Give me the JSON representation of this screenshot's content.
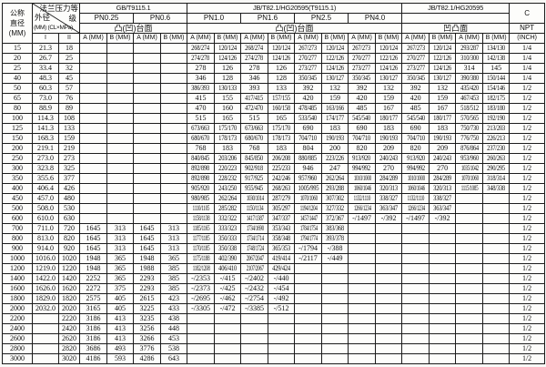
{
  "header": {
    "dn_line1": "公称",
    "dn_line2": "直径",
    "dn_line3": "(MM)",
    "diag": {
      "flange_class_1": "法兰压力等",
      "flange_class_2": "级",
      "od": "外径",
      "od_unit": "(MM) (CL×MPa)"
    },
    "od_sub_1": "I",
    "od_sub_2": "II",
    "groups": [
      {
        "title": "GB/T9115.1",
        "face": "凸(凹)台面",
        "pns": [
          "PN0.25",
          "PN0.6"
        ]
      },
      {
        "title": "JB/T82.1/HG20595(T9115.1)",
        "face": "凸(凹)台面",
        "pns": [
          "PN1.0",
          "PN1.6",
          "PN2.5",
          "PN4.0"
        ]
      },
      {
        "title": "JB/T82.1/HG20595",
        "face": "凹凸面",
        "pns": []
      }
    ],
    "a_label": "A (MM)",
    "b_label": "B (MM)",
    "c": {
      "title": "C",
      "npt": "NPT",
      "unit": "(INCH)"
    }
  },
  "rows": [
    [
      "15",
      "21.3",
      "18",
      "",
      "",
      "",
      "",
      "268/274",
      "120/124",
      "268/274",
      "120/124",
      "267/273",
      "120/124",
      "267/273",
      "120/124",
      "267/273",
      "120/124",
      "293/287",
      "134/130",
      "1/4"
    ],
    [
      "20",
      "26.7",
      "25",
      "",
      "",
      "",
      "",
      "274/278",
      "124/126",
      "274/278",
      "124/126",
      "270/277",
      "122/126",
      "270/277",
      "122/126",
      "270/277",
      "122/126",
      "310/300",
      "142/138",
      "1/4"
    ],
    [
      "25",
      "33.4",
      "32",
      "",
      "",
      "",
      "",
      "278",
      "126",
      "278",
      "126",
      "273/277",
      "124/126",
      "273/277",
      "124/126",
      "273/277",
      "124/126",
      "314",
      "145",
      "1/4"
    ],
    [
      "40",
      "48.3",
      "45",
      "",
      "",
      "",
      "",
      "346",
      "128",
      "346",
      "128",
      "350/345",
      "130/127",
      "350/345",
      "130/127",
      "350/345",
      "130/127",
      "390/380",
      "150/144",
      "1/4"
    ],
    [
      "50",
      "60.3",
      "57",
      "",
      "",
      "",
      "",
      "386/393",
      "130/133",
      "393",
      "133",
      "392",
      "132",
      "392",
      "132",
      "392",
      "132",
      "435/420",
      "154/146",
      "1/2"
    ],
    [
      "65",
      "73.0",
      "76",
      "",
      "",
      "",
      "",
      "415",
      "155",
      "417/415",
      "157/155",
      "420",
      "159",
      "420",
      "159",
      "420",
      "159",
      "467/453",
      "182/175",
      "1/2"
    ],
    [
      "80",
      "88.9",
      "89",
      "",
      "",
      "",
      "",
      "470",
      "160",
      "472/470",
      "160/158",
      "478/485",
      "163/166",
      "485",
      "167",
      "485",
      "167",
      "518/512",
      "183/180",
      "1/2"
    ],
    [
      "100",
      "114.3",
      "108",
      "",
      "",
      "",
      "",
      "515",
      "165",
      "515",
      "165",
      "533/540",
      "174/177",
      "545/540",
      "180/177",
      "545/540",
      "180/177",
      "570/565",
      "192/190",
      "1/2"
    ],
    [
      "125",
      "141.3",
      "133",
      "",
      "",
      "",
      "",
      "673/663",
      "175/170",
      "673/663",
      "175/170",
      "690",
      "183",
      "690",
      "183",
      "690",
      "183",
      "750/730",
      "213/203",
      "1/2"
    ],
    [
      "150",
      "168.3",
      "159",
      "",
      "",
      "",
      "",
      "680/670",
      "178/173",
      "680/670",
      "178/173",
      "704/710",
      "190/193",
      "704/710",
      "190/193",
      "704/710",
      "190/193",
      "776/750",
      "226/213",
      "1/2"
    ],
    [
      "200",
      "219.1",
      "219",
      "",
      "",
      "",
      "",
      "768",
      "183",
      "768",
      "183",
      "804",
      "200",
      "820",
      "209",
      "820",
      "209",
      "876/864",
      "237/230",
      "1/2"
    ],
    [
      "250",
      "273.0",
      "273",
      "",
      "",
      "",
      "",
      "840/845",
      "203/206",
      "845/850",
      "206/208",
      "880/885",
      "223/226",
      "913/920",
      "240/243",
      "913/920",
      "240/243",
      "953/960",
      "260/263",
      "1/2"
    ],
    [
      "300",
      "323.8",
      "325",
      "",
      "",
      "",
      "",
      "892/898",
      "220/223",
      "902/918",
      "225/233",
      "946",
      "247",
      "994/992",
      "270",
      "994/992",
      "270",
      "1035/1042",
      "290/295",
      "1/2"
    ],
    [
      "350",
      "355.6",
      "377",
      "",
      "",
      "",
      "",
      "892/898",
      "228/232",
      "917/925",
      "242/246",
      "957/960",
      "262/264",
      "1010/1000",
      "284/289",
      "1010/1000",
      "284/289",
      "1070/1060",
      "318/314",
      "1/2"
    ],
    [
      "400",
      "406.4",
      "426",
      "",
      "",
      "",
      "",
      "905/920",
      "243/250",
      "955/945",
      "268/263",
      "1005/995",
      "293/288",
      "1060/1046",
      "320/313",
      "1060/1046",
      "320/313",
      "1115/1085",
      "348/338",
      "1/2"
    ],
    [
      "450",
      "457.0",
      "480",
      "",
      "",
      "",
      "",
      "980/985",
      "262/264",
      "1030/1014",
      "287/279",
      "1070/1060",
      "307/302",
      "1132/1110",
      "338/327",
      "1132/1110",
      "338/327",
      "",
      "",
      "1/2"
    ],
    [
      "500",
      "508.0",
      "530",
      "",
      "",
      "",
      "",
      "1110/1105",
      "285/282",
      "1150/1134",
      "305/297",
      "1194/1204",
      "327/332",
      "1266/1234",
      "363/347",
      "1266/1234",
      "363/347",
      "",
      "",
      "1/2"
    ],
    [
      "600",
      "610.0",
      "630",
      "",
      "",
      "",
      "",
      "1158/1138",
      "332/322",
      "1417/1387",
      "347/337",
      "1457/1447",
      "372/367",
      "-/1497",
      "-/392",
      "-/1497",
      "-/392",
      "",
      "",
      "1/2"
    ],
    [
      "700",
      "711.0",
      "720",
      "1645",
      "313",
      "1645",
      "313",
      "1185/1165",
      "333/323",
      "1734/1690",
      "353/343",
      "1784/1754",
      "383/368",
      "",
      "",
      "",
      "",
      "",
      "",
      "1/2"
    ],
    [
      "800",
      "813.0",
      "820",
      "1645",
      "313",
      "1645",
      "313",
      "1177/1185",
      "350/333",
      "1734/1714",
      "358/348",
      "1794/1774",
      "393/378",
      "",
      "",
      "",
      "",
      "",
      "",
      "1/2"
    ],
    [
      "900",
      "914.0",
      "920",
      "1645",
      "313",
      "1645",
      "313",
      "1170/1185",
      "350/338",
      "1748/1724",
      "365/353",
      "-/1794",
      "-/388",
      "",
      "",
      "",
      "",
      "",
      "",
      "1/2"
    ],
    [
      "1000",
      "1016.0",
      "1020",
      "1948",
      "365",
      "1948",
      "365",
      "1175/1188",
      "402/390",
      "2067/2047",
      "419/414",
      "-/2117",
      "-/449",
      "",
      "",
      "",
      "",
      "",
      "",
      "1/2"
    ],
    [
      "1200",
      "1219.0",
      "1220",
      "1948",
      "365",
      "1988",
      "385",
      "1182/1208",
      "406/410",
      "2107/2067",
      "429/424",
      "",
      "",
      "",
      "",
      "",
      "",
      "",
      "",
      "1/2"
    ],
    [
      "1400",
      "1422.0",
      "1420",
      "2252",
      "365",
      "2293",
      "385",
      "-/2353",
      "-/415",
      "-/2402",
      "-/440",
      "",
      "",
      "",
      "",
      "",
      "",
      "",
      "",
      "1/2"
    ],
    [
      "1600",
      "1626.0",
      "1620",
      "2272",
      "375",
      "2293",
      "385",
      "-/2373",
      "-/425",
      "-/2432",
      "-/454",
      "",
      "",
      "",
      "",
      "",
      "",
      "",
      "",
      "1/2"
    ],
    [
      "1800",
      "1829.0",
      "1820",
      "2575",
      "405",
      "2615",
      "423",
      "-/2695",
      "-/462",
      "-/2754",
      "-/492",
      "",
      "",
      "",
      "",
      "",
      "",
      "",
      "",
      "1/2"
    ],
    [
      "2000",
      "2032.0",
      "2020",
      "3165",
      "405",
      "3225",
      "433",
      "-/3305",
      "-/472",
      "-/3385",
      "-/512",
      "",
      "",
      "",
      "",
      "",
      "",
      "",
      "",
      "1/2"
    ],
    [
      "2200",
      "",
      "2220",
      "3186",
      "413",
      "3235",
      "438",
      "",
      "",
      "",
      "",
      "",
      "",
      "",
      "",
      "",
      "",
      "",
      "",
      "1/2"
    ],
    [
      "2400",
      "",
      "2420",
      "3186",
      "413",
      "3256",
      "448",
      "",
      "",
      "",
      "",
      "",
      "",
      "",
      "",
      "",
      "",
      "",
      "",
      "1/2"
    ],
    [
      "2600",
      "",
      "2620",
      "3186",
      "413",
      "3266",
      "453",
      "",
      "",
      "",
      "",
      "",
      "",
      "",
      "",
      "",
      "",
      "",
      "",
      "1/2"
    ],
    [
      "2800",
      "",
      "2820",
      "3686",
      "493",
      "3776",
      "538",
      "",
      "",
      "",
      "",
      "",
      "",
      "",
      "",
      "",
      "",
      "",
      "",
      "1/2"
    ],
    [
      "3000",
      "",
      "3020",
      "4186",
      "593",
      "4286",
      "643",
      "",
      "",
      "",
      "",
      "",
      "",
      "",
      "",
      "",
      "",
      "",
      "",
      "1/2"
    ]
  ]
}
